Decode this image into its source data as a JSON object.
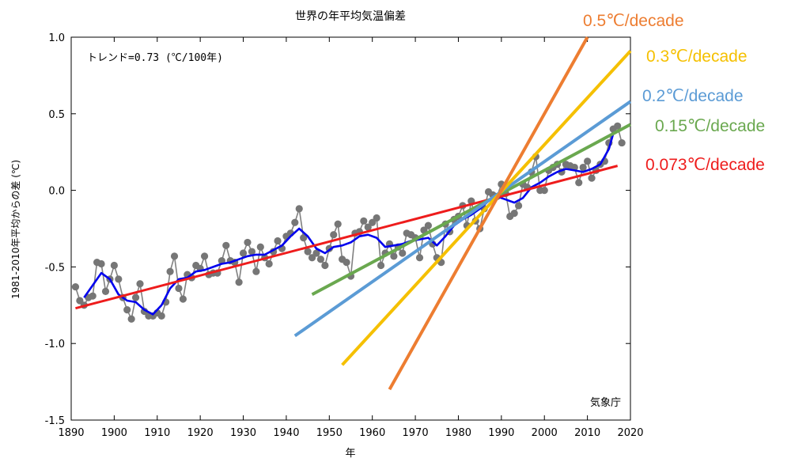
{
  "chart_data": {
    "type": "line",
    "title": "世界の年平均気温偏差",
    "xlabel": "年",
    "ylabel": "1981-2010年平均からの差 (℃)",
    "xlim": [
      1890,
      2020
    ],
    "ylim": [
      -1.5,
      1.0
    ],
    "x_ticks": [
      1890,
      1900,
      1910,
      1920,
      1930,
      1940,
      1950,
      1960,
      1970,
      1980,
      1990,
      2000,
      2010,
      2020
    ],
    "y_ticks": [
      "1.0",
      "0.5",
      "0.0",
      "-0.5",
      "-1.0",
      "-1.5"
    ],
    "trend_text": "トレンド=0.73 (℃/100年)",
    "source": "気象庁",
    "grid": false,
    "colors": {
      "annual": "#808080",
      "running_mean": "#0000ee",
      "trend_0073": "#ee1c1c",
      "trend_015": "#6aa84f",
      "trend_02": "#5b9bd5",
      "trend_03": "#f5c000",
      "trend_05": "#ed7d31"
    },
    "series": [
      {
        "key": "annual",
        "x": [
          1891,
          1892,
          1893,
          1894,
          1895,
          1896,
          1897,
          1898,
          1899,
          1900,
          1901,
          1902,
          1903,
          1904,
          1905,
          1906,
          1907,
          1908,
          1909,
          1910,
          1911,
          1912,
          1913,
          1914,
          1915,
          1916,
          1917,
          1918,
          1919,
          1920,
          1921,
          1922,
          1923,
          1924,
          1925,
          1926,
          1927,
          1928,
          1929,
          1930,
          1931,
          1932,
          1933,
          1934,
          1935,
          1936,
          1937,
          1938,
          1939,
          1940,
          1941,
          1942,
          1943,
          1944,
          1945,
          1946,
          1947,
          1948,
          1949,
          1950,
          1951,
          1952,
          1953,
          1954,
          1955,
          1956,
          1957,
          1958,
          1959,
          1960,
          1961,
          1962,
          1963,
          1964,
          1965,
          1966,
          1967,
          1968,
          1969,
          1970,
          1971,
          1972,
          1973,
          1974,
          1975,
          1976,
          1977,
          1978,
          1979,
          1980,
          1981,
          1982,
          1983,
          1984,
          1985,
          1986,
          1987,
          1988,
          1989,
          1990,
          1991,
          1992,
          1993,
          1994,
          1995,
          1996,
          1997,
          1998,
          1999,
          2000,
          2001,
          2002,
          2003,
          2004,
          2005,
          2006,
          2007,
          2008,
          2009,
          2010,
          2011,
          2012,
          2013,
          2014,
          2015,
          2016,
          2017,
          2018
        ],
        "values": [
          -0.63,
          -0.72,
          -0.75,
          -0.7,
          -0.69,
          -0.47,
          -0.48,
          -0.66,
          -0.58,
          -0.49,
          -0.58,
          -0.7,
          -0.78,
          -0.84,
          -0.7,
          -0.61,
          -0.79,
          -0.82,
          -0.82,
          -0.8,
          -0.82,
          -0.73,
          -0.53,
          -0.43,
          -0.64,
          -0.71,
          -0.55,
          -0.57,
          -0.49,
          -0.51,
          -0.43,
          -0.55,
          -0.54,
          -0.54,
          -0.46,
          -0.36,
          -0.46,
          -0.47,
          -0.6,
          -0.41,
          -0.34,
          -0.4,
          -0.53,
          -0.37,
          -0.44,
          -0.48,
          -0.4,
          -0.33,
          -0.38,
          -0.3,
          -0.28,
          -0.21,
          -0.12,
          -0.31,
          -0.4,
          -0.44,
          -0.41,
          -0.45,
          -0.49,
          -0.38,
          -0.29,
          -0.22,
          -0.45,
          -0.47,
          -0.56,
          -0.28,
          -0.27,
          -0.2,
          -0.24,
          -0.21,
          -0.18,
          -0.49,
          -0.41,
          -0.35,
          -0.43,
          -0.37,
          -0.41,
          -0.28,
          -0.29,
          -0.31,
          -0.44,
          -0.26,
          -0.23,
          -0.35,
          -0.44,
          -0.47,
          -0.22,
          -0.27,
          -0.19,
          -0.17,
          -0.1,
          -0.23,
          -0.07,
          -0.2,
          -0.25,
          -0.12,
          -0.01,
          -0.03,
          -0.04,
          0.04,
          -0.02,
          -0.17,
          -0.15,
          -0.1,
          0.04,
          0.02,
          0.12,
          0.22,
          0.0,
          0.0,
          0.13,
          0.15,
          0.17,
          0.12,
          0.17,
          0.16,
          0.15,
          0.05,
          0.15,
          0.19,
          0.08,
          0.13,
          0.17,
          0.19,
          0.31,
          0.4,
          0.42,
          0.31
        ],
        "marker": "circle"
      },
      {
        "key": "running_mean",
        "x": [
          1893,
          1895,
          1897,
          1899,
          1901,
          1903,
          1905,
          1907,
          1909,
          1911,
          1913,
          1915,
          1917,
          1919,
          1921,
          1923,
          1925,
          1927,
          1929,
          1931,
          1933,
          1935,
          1937,
          1939,
          1941,
          1943,
          1945,
          1947,
          1949,
          1951,
          1953,
          1955,
          1957,
          1959,
          1961,
          1963,
          1965,
          1967,
          1969,
          1971,
          1973,
          1975,
          1977,
          1979,
          1981,
          1983,
          1985,
          1987,
          1989,
          1991,
          1993,
          1995,
          1997,
          1999,
          2001,
          2003,
          2005,
          2007,
          2009,
          2011,
          2013,
          2015,
          2016
        ],
        "values": [
          -0.7,
          -0.62,
          -0.54,
          -0.58,
          -0.68,
          -0.72,
          -0.73,
          -0.78,
          -0.81,
          -0.75,
          -0.64,
          -0.58,
          -0.57,
          -0.53,
          -0.52,
          -0.5,
          -0.48,
          -0.47,
          -0.45,
          -0.43,
          -0.42,
          -0.42,
          -0.39,
          -0.36,
          -0.3,
          -0.25,
          -0.3,
          -0.38,
          -0.41,
          -0.37,
          -0.36,
          -0.34,
          -0.3,
          -0.29,
          -0.31,
          -0.37,
          -0.36,
          -0.35,
          -0.33,
          -0.32,
          -0.31,
          -0.36,
          -0.3,
          -0.23,
          -0.19,
          -0.16,
          -0.12,
          -0.07,
          -0.04,
          -0.06,
          -0.08,
          -0.05,
          0.02,
          0.05,
          0.09,
          0.12,
          0.14,
          0.13,
          0.12,
          0.14,
          0.17,
          0.27,
          0.37
        ]
      }
    ],
    "trend_lines": [
      {
        "key": "trend_0073",
        "label": "0.073℃/decade",
        "x": [
          1891,
          2017
        ],
        "values": [
          -0.77,
          0.16
        ]
      },
      {
        "key": "trend_015",
        "label": "0.15℃/decade",
        "x": [
          1946,
          2020
        ],
        "values": [
          -0.68,
          0.43
        ]
      },
      {
        "key": "trend_02",
        "label": "0.2℃/decade",
        "x": [
          1942,
          2020
        ],
        "values": [
          -0.95,
          0.58
        ]
      },
      {
        "key": "trend_03",
        "label": "0.3℃/decade",
        "x": [
          1953,
          2020
        ],
        "values": [
          -1.14,
          0.91
        ]
      },
      {
        "key": "trend_05",
        "label": "0.5℃/decade",
        "x": [
          1964,
          2010
        ],
        "values": [
          -1.3,
          1.0
        ]
      }
    ]
  }
}
